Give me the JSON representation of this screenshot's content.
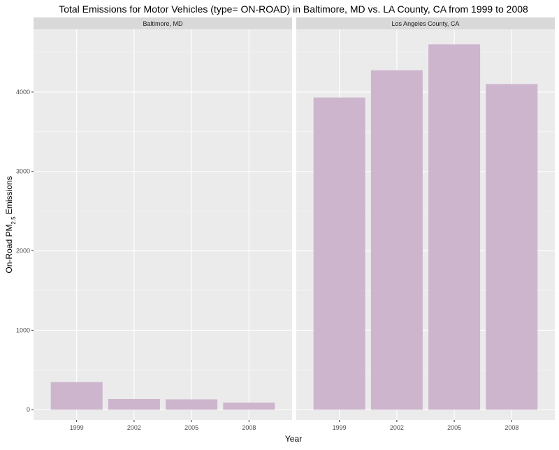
{
  "chart_data": {
    "type": "bar",
    "title": "Total Emissions for Motor Vehicles (type= ON-ROAD) in Baltimore, MD vs. LA County, CA from 1999 to 2008",
    "xlabel": "Year",
    "ylabel": {
      "prefix": "On-Road PM",
      "subscript": "2.5",
      "suffix": " Emissions"
    },
    "ylim": [
      -130,
      4790
    ],
    "yticks": [
      0,
      1000,
      2000,
      3000,
      4000
    ],
    "grid": true,
    "facets": [
      {
        "name": "Baltimore, MD",
        "categories": [
          "1999",
          "2002",
          "2005",
          "2008"
        ],
        "values": [
          347,
          134,
          130,
          89
        ]
      },
      {
        "name": "Los Angeles County, CA",
        "categories": [
          "1999",
          "2002",
          "2005",
          "2008"
        ],
        "values": [
          3931,
          4274,
          4601,
          4101
        ]
      }
    ],
    "colors": {
      "bar": "#cdb5cd",
      "panel": "#ebebeb",
      "strip": "#d9d9d9",
      "grid_major": "#ffffff",
      "text": "#000000",
      "tick_text": "#4d4d4d"
    }
  }
}
